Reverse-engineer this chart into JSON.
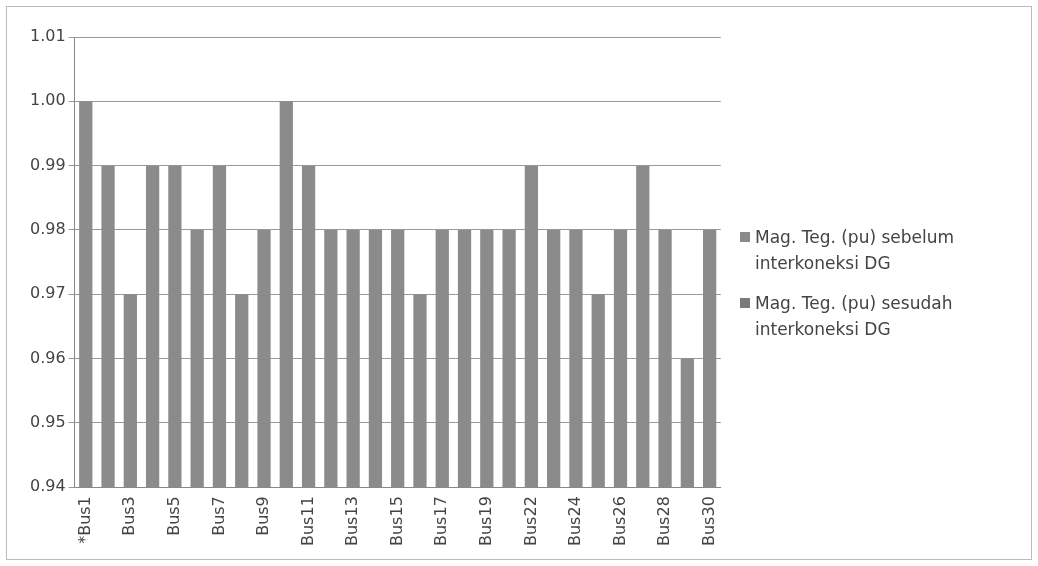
{
  "chart_data": {
    "type": "bar",
    "categories": [
      "*Bus1",
      null,
      "Bus3",
      null,
      "Bus5",
      null,
      "Bus7",
      null,
      "Bus9",
      null,
      "Bus11",
      null,
      "Bus13",
      null,
      "Bus15",
      null,
      "Bus17",
      null,
      "Bus19",
      null,
      "Bus22",
      null,
      "Bus24",
      null,
      "Bus26",
      null,
      "Bus28",
      null,
      "Bus30"
    ],
    "series": [
      {
        "name": "Mag. Teg. (pu) sebelum interkoneksi DG",
        "color": "#8b8b8b",
        "values": [
          1.0,
          0.99,
          0.97,
          0.99,
          0.99,
          0.98,
          0.99,
          0.97,
          0.98,
          1.0,
          0.99,
          0.98,
          0.98,
          0.98,
          0.98,
          0.97,
          0.98,
          0.98,
          0.98,
          0.98,
          0.99,
          0.98,
          0.98,
          0.97,
          0.98,
          0.99,
          0.98,
          0.96,
          0.98
        ]
      },
      {
        "name": "Mag. Teg. (pu) sesudah interkoneksi DG",
        "color": "#7a7a7a",
        "values": [
          null,
          null,
          null,
          null,
          null,
          null,
          null,
          null,
          null,
          null,
          null,
          null,
          null,
          null,
          null,
          null,
          null,
          null,
          null,
          null,
          null,
          null,
          null,
          null,
          null,
          null,
          null,
          null,
          null
        ]
      }
    ],
    "ylim": [
      0.94,
      1.01
    ],
    "yticks": [
      0.94,
      0.95,
      0.96,
      0.97,
      0.98,
      0.99,
      {
        "value": 1.0,
        "label": "1.00"
      },
      1.01
    ],
    "grid": "y",
    "legend": "right"
  }
}
